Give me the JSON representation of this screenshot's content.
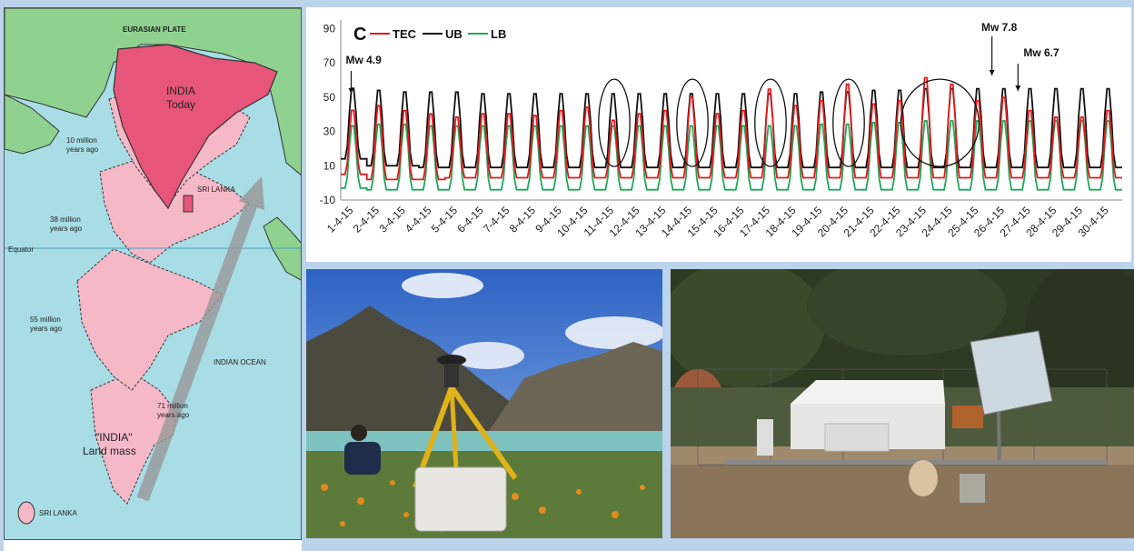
{
  "map": {
    "eurasian_plate": "EURASIAN PLATE",
    "india_today_line1": "INDIA",
    "india_today_line2": "Today",
    "sri_lanka_top": "SRI LANKA",
    "ten_my_line1": "10 million",
    "ten_my_line2": "years ago",
    "thirtyeight_my_line1": "38 million",
    "thirtyeight_my_line2": "years ago",
    "equator": "Equator",
    "fiftyfive_my_line1": "55 million",
    "fiftyfive_my_line2": "years ago",
    "indian_ocean": "INDIAN OCEAN",
    "seventyone_my_line1": "71 million",
    "seventyone_my_line2": "years ago",
    "landmass_line1": "\"INDIA\"",
    "landmass_line2": "Land mass",
    "sri_lanka_bottom": "SRI LANKA",
    "colors": {
      "ocean": "#a8dde6",
      "land": "#8fd18f",
      "india_today": "#e8557a",
      "landmass": "#f4b8c6"
    }
  },
  "chart_data": {
    "type": "line",
    "panel_label": "C",
    "x": [
      "1-4-15",
      "2-4-15",
      "3-4-15",
      "4-4-15",
      "5-4-15",
      "6-4-15",
      "7-4-15",
      "8-4-15",
      "9-4-15",
      "10-4-15",
      "11-4-15",
      "12-4-15",
      "13-4-15",
      "14-4-15",
      "15-4-15",
      "16-4-15",
      "17-4-15",
      "18-4-15",
      "19-4-15",
      "20-4-15",
      "21-4-15",
      "22-4-15",
      "23-4-15",
      "24-4-15",
      "25-4-15",
      "26-4-15",
      "27-4-15",
      "28-4-15",
      "29-4-15",
      "30-4-15"
    ],
    "series": [
      {
        "name": "TEC",
        "color": "#e31a1c",
        "daily_max": [
          44,
          47,
          44,
          42,
          40,
          42,
          42,
          41,
          44,
          46,
          38,
          42,
          44,
          52,
          42,
          44,
          57,
          47,
          50,
          60,
          48,
          50,
          64,
          60,
          50,
          52,
          44,
          40,
          40,
          44
        ],
        "daily_min": [
          5,
          2,
          2,
          2,
          3,
          3,
          3,
          3,
          3,
          3,
          3,
          3,
          3,
          3,
          3,
          3,
          3,
          3,
          3,
          3,
          3,
          3,
          3,
          3,
          3,
          3,
          3,
          3,
          3,
          3
        ]
      },
      {
        "name": "UB",
        "color": "#111111",
        "daily_max": [
          57,
          56,
          55,
          55,
          55,
          54,
          54,
          54,
          54,
          54,
          54,
          54,
          54,
          54,
          54,
          54,
          54,
          54,
          55,
          55,
          56,
          56,
          57,
          57,
          57,
          57,
          57,
          57,
          57,
          57
        ],
        "daily_min": [
          14,
          10,
          10,
          9,
          9,
          9,
          9,
          9,
          9,
          9,
          9,
          9,
          9,
          9,
          9,
          9,
          9,
          9,
          9,
          9,
          9,
          9,
          9,
          9,
          9,
          9,
          9,
          9,
          9,
          9
        ]
      },
      {
        "name": "LB",
        "color": "#1fa85a",
        "daily_max": [
          35,
          36,
          36,
          35,
          35,
          35,
          35,
          35,
          35,
          35,
          35,
          35,
          35,
          35,
          35,
          35,
          35,
          35,
          36,
          36,
          37,
          37,
          38,
          38,
          38,
          38,
          38,
          38,
          38,
          38
        ],
        "daily_min": [
          -3,
          -4,
          -4,
          -4,
          -4,
          -4,
          -4,
          -4,
          -4,
          -4,
          -4,
          -4,
          -4,
          -4,
          -4,
          -4,
          -4,
          -4,
          -4,
          -4,
          -4,
          -4,
          -4,
          -4,
          -4,
          -4,
          -4,
          -4,
          -4,
          -4
        ]
      }
    ],
    "ylim": [
      -10,
      95
    ],
    "yticks": [
      -10,
      10,
      30,
      50,
      70,
      90
    ],
    "annotations": [
      {
        "label": "Mw 4.9",
        "x_index": 0
      },
      {
        "label": "Mw 7.8",
        "x_index": 24.6
      },
      {
        "label": "Mw 6.7",
        "x_index": 25.6
      }
    ],
    "highlight_days": [
      10,
      13,
      16,
      19,
      23
    ],
    "grid": false,
    "legend": "top-left"
  },
  "photos": {
    "left_subject": "gnss-survey-tripod-by-lake",
    "right_subject": "gnss-station-enclosure"
  }
}
